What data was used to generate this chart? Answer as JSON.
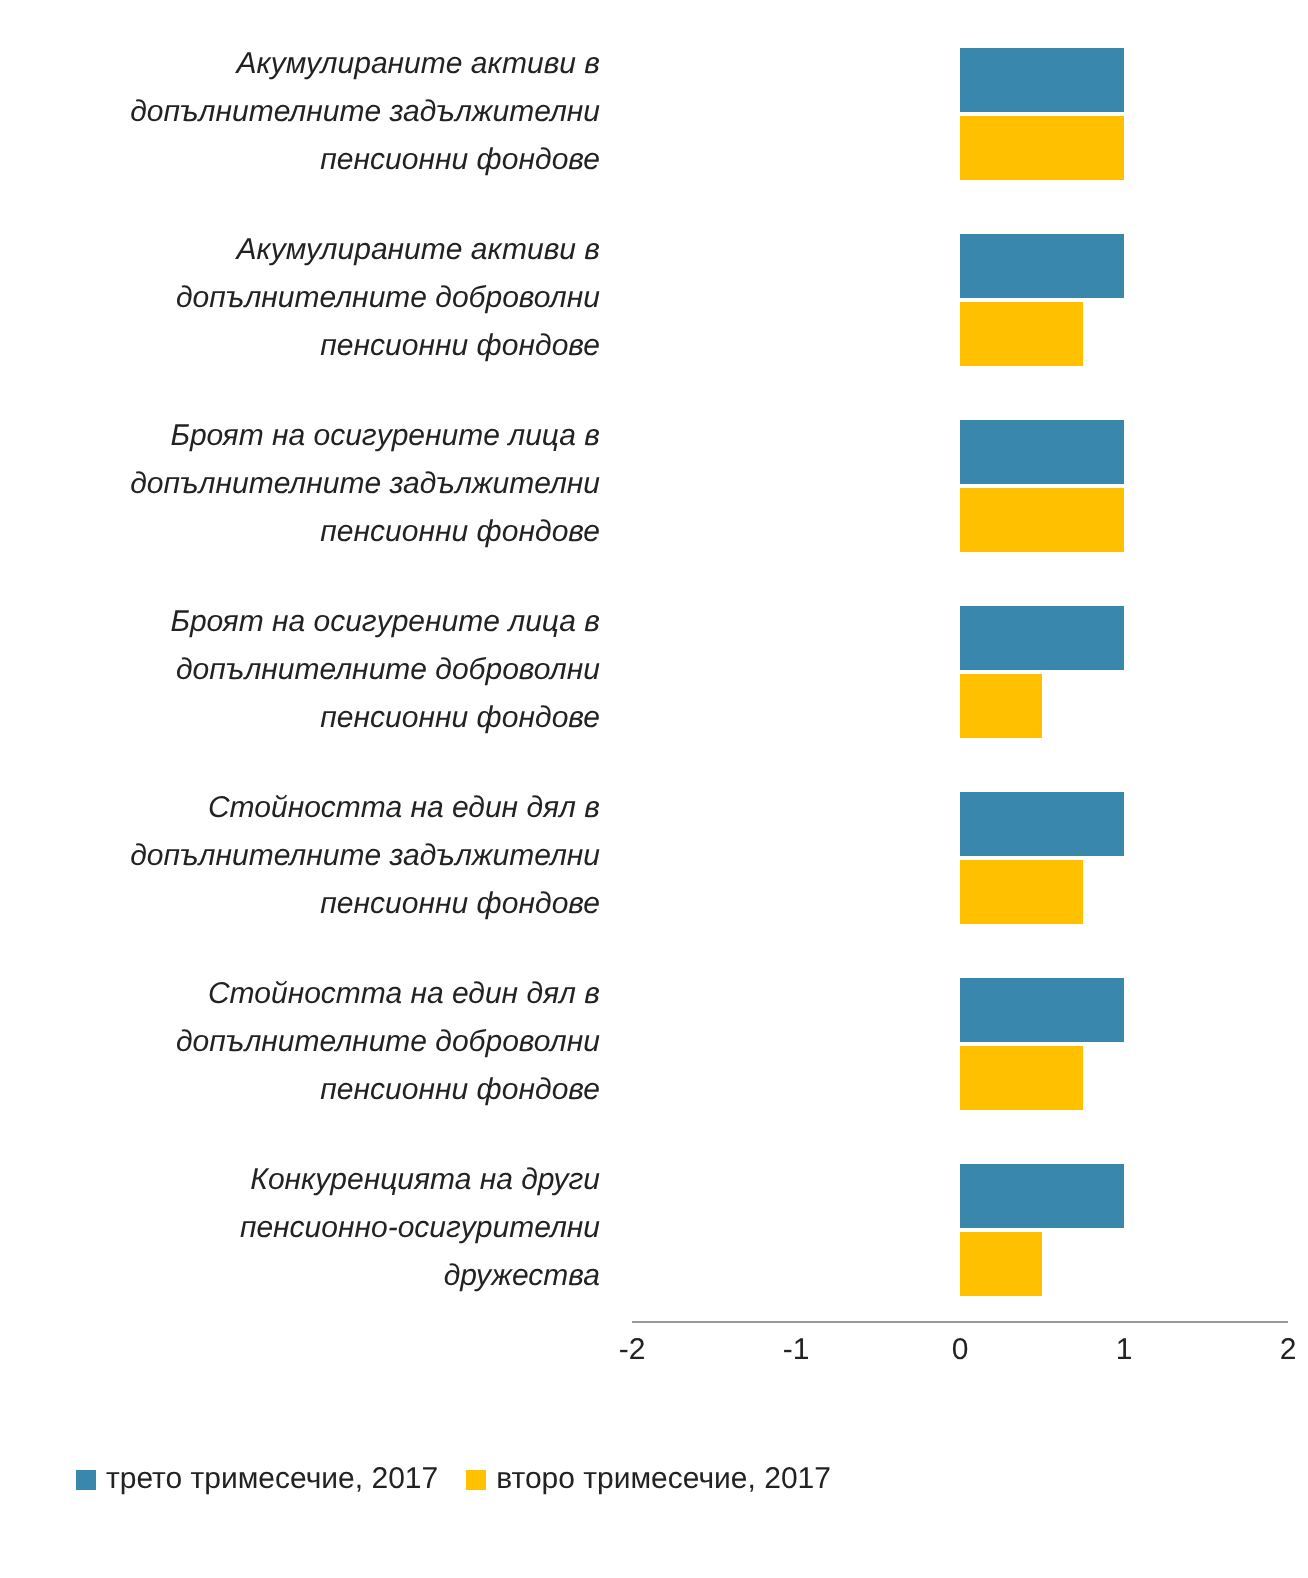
{
  "chart_data": {
    "type": "bar",
    "orientation": "horizontal",
    "categories": [
      "Акумулираните активи в допълнителните задължителни пенсионни фондове",
      "Акумулираните активи в допълнителните доброволни пенсионни фондове",
      "Броят на осигурените лица в допълнителните задължителни пенсионни фондове",
      "Броят на осигурените лица в допълнителните доброволни пенсионни фондове",
      "Стойността на един дял в допълнителните задължителни пенсионни фондове",
      "Стойността на един дял в допълнителните доброволни пенсионни фондове",
      "Конкуренцията на други пенсионно-осигурителни дружества"
    ],
    "series": [
      {
        "name": "трето тримесечие, 2017",
        "color": "#3a87ad",
        "values": [
          1,
          1,
          1,
          1,
          1,
          1,
          1
        ]
      },
      {
        "name": "второ тримесечие, 2017",
        "color": "#ffc000",
        "values": [
          1,
          0.75,
          1,
          0.5,
          0.75,
          0.75,
          0.5
        ]
      }
    ],
    "xlim": [
      -2,
      2
    ],
    "xticks": [
      -2,
      -1,
      0,
      1,
      2
    ],
    "legend": "bottom left"
  }
}
